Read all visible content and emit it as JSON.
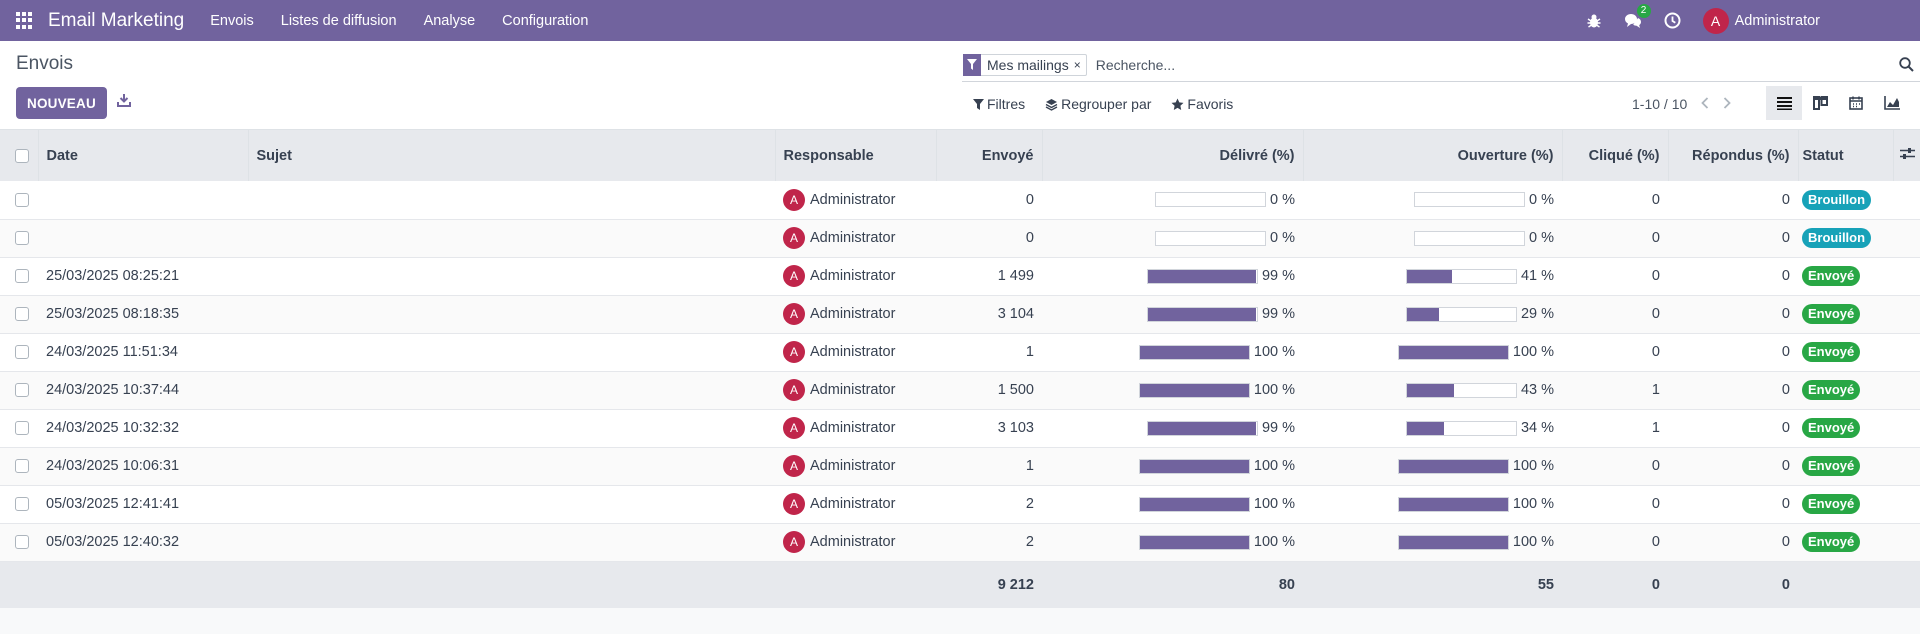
{
  "topbar": {
    "app_name": "Email Marketing",
    "menu": [
      "Envois",
      "Listes de diffusion",
      "Analyse",
      "Configuration"
    ],
    "chat_count": "2",
    "user_initial": "A",
    "user_name": "Administrator",
    "icons": [
      "apps-grid-icon",
      "bug-icon",
      "chat-icon",
      "clock-icon"
    ]
  },
  "control": {
    "breadcrumb": "Envois",
    "new_button": "NOUVEAU",
    "facet_label": "Mes mailings",
    "facet_remove": "×",
    "search_placeholder": "Recherche...",
    "filters": "Filtres",
    "group_by": "Regrouper par",
    "favorites": "Favoris",
    "pager": "1-10 / 10"
  },
  "table": {
    "columns": {
      "date": "Date",
      "subject": "Sujet",
      "responsible": "Responsable",
      "sent": "Envoyé",
      "delivered": "Délivré (%)",
      "opened": "Ouverture (%)",
      "clicked": "Cliqué (%)",
      "replied": "Répondus (%)",
      "status": "Statut"
    },
    "rows": [
      {
        "date": "",
        "subject": "",
        "responsible": "Administrator",
        "sent": "0",
        "delivered": 0,
        "delivered_label": "0 %",
        "opened": 0,
        "opened_label": "0 %",
        "clicked": "0",
        "replied": "0",
        "status": "Brouillon"
      },
      {
        "date": "",
        "subject": "",
        "responsible": "Administrator",
        "sent": "0",
        "delivered": 0,
        "delivered_label": "0 %",
        "opened": 0,
        "opened_label": "0 %",
        "clicked": "0",
        "replied": "0",
        "status": "Brouillon"
      },
      {
        "date": "25/03/2025 08:25:21",
        "subject": "",
        "responsible": "Administrator",
        "sent": "1 499",
        "delivered": 99,
        "delivered_label": "99 %",
        "opened": 41,
        "opened_label": "41 %",
        "clicked": "0",
        "replied": "0",
        "status": "Envoyé"
      },
      {
        "date": "25/03/2025 08:18:35",
        "subject": "",
        "responsible": "Administrator",
        "sent": "3 104",
        "delivered": 99,
        "delivered_label": "99 %",
        "opened": 29,
        "opened_label": "29 %",
        "clicked": "0",
        "replied": "0",
        "status": "Envoyé"
      },
      {
        "date": "24/03/2025 11:51:34",
        "subject": "",
        "responsible": "Administrator",
        "sent": "1",
        "delivered": 100,
        "delivered_label": "100 %",
        "opened": 100,
        "opened_label": "100 %",
        "clicked": "0",
        "replied": "0",
        "status": "Envoyé"
      },
      {
        "date": "24/03/2025 10:37:44",
        "subject": "",
        "responsible": "Administrator",
        "sent": "1 500",
        "delivered": 100,
        "delivered_label": "100 %",
        "opened": 43,
        "opened_label": "43 %",
        "clicked": "1",
        "replied": "0",
        "status": "Envoyé"
      },
      {
        "date": "24/03/2025 10:32:32",
        "subject": "",
        "responsible": "Administrator",
        "sent": "3 103",
        "delivered": 99,
        "delivered_label": "99 %",
        "opened": 34,
        "opened_label": "34 %",
        "clicked": "1",
        "replied": "0",
        "status": "Envoyé"
      },
      {
        "date": "24/03/2025 10:06:31",
        "subject": "",
        "responsible": "Administrator",
        "sent": "1",
        "delivered": 100,
        "delivered_label": "100 %",
        "opened": 100,
        "opened_label": "100 %",
        "clicked": "0",
        "replied": "0",
        "status": "Envoyé"
      },
      {
        "date": "05/03/2025 12:41:41",
        "subject": "",
        "responsible": "Administrator",
        "sent": "2",
        "delivered": 100,
        "delivered_label": "100 %",
        "opened": 100,
        "opened_label": "100 %",
        "clicked": "0",
        "replied": "0",
        "status": "Envoyé"
      },
      {
        "date": "05/03/2025 12:40:32",
        "subject": "",
        "responsible": "Administrator",
        "sent": "2",
        "delivered": 100,
        "delivered_label": "100 %",
        "opened": 100,
        "opened_label": "100 %",
        "clicked": "0",
        "replied": "0",
        "status": "Envoyé"
      }
    ],
    "totals": {
      "sent": "9 212",
      "delivered": "80",
      "opened": "55",
      "clicked": "0",
      "replied": "0"
    }
  },
  "colors": {
    "brand": "#71639e",
    "draft": "#17a2b8",
    "sent": "#28a745",
    "avatar": "#c0254a"
  }
}
